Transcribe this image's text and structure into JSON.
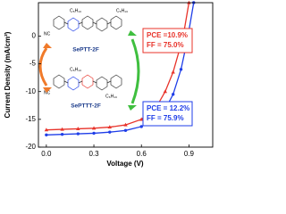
{
  "chart_data": {
    "type": "line",
    "xlabel": "Voltage (V)",
    "ylabel": "Current Density (mA/cm²)",
    "xlim": [
      -0.05,
      1.05
    ],
    "xticks": [
      {
        "value": 0,
        "label": "0.0"
      },
      0.3,
      0.6,
      0.9
    ],
    "ylim": [
      -20,
      6
    ],
    "yticks": [
      0,
      -5,
      -10,
      -15,
      -20
    ],
    "series": [
      {
        "name": "SePTT-2F",
        "color": "#e8332a",
        "marker": "triangle",
        "x": [
          0,
          0.1,
          0.2,
          0.3,
          0.4,
          0.5,
          0.6,
          0.7,
          0.75,
          0.8,
          0.85,
          0.87,
          0.9
        ],
        "values": [
          -16.9,
          -16.8,
          -16.7,
          -16.6,
          -16.4,
          -16.0,
          -15.0,
          -12.5,
          -10.0,
          -6.5,
          -1.5,
          1,
          6
        ]
      },
      {
        "name": "SePTTT-2F",
        "color": "#1f3ee8",
        "marker": "circle",
        "x": [
          0,
          0.1,
          0.2,
          0.3,
          0.4,
          0.5,
          0.6,
          0.7,
          0.75,
          0.8,
          0.85,
          0.88,
          0.9,
          0.93
        ],
        "values": [
          -17.8,
          -17.7,
          -17.6,
          -17.5,
          -17.3,
          -17.0,
          -16.3,
          -14.8,
          -13.2,
          -10.5,
          -6,
          -2,
          1,
          6
        ]
      }
    ],
    "annotations": [
      {
        "lines": [
          "PCE =10.9%",
          "FF = 75.0%"
        ],
        "color": "#e8332a"
      },
      {
        "lines": [
          "PCE = 12.2%",
          "FF = 75.9%"
        ],
        "color": "#1f3ee8"
      }
    ]
  }
}
